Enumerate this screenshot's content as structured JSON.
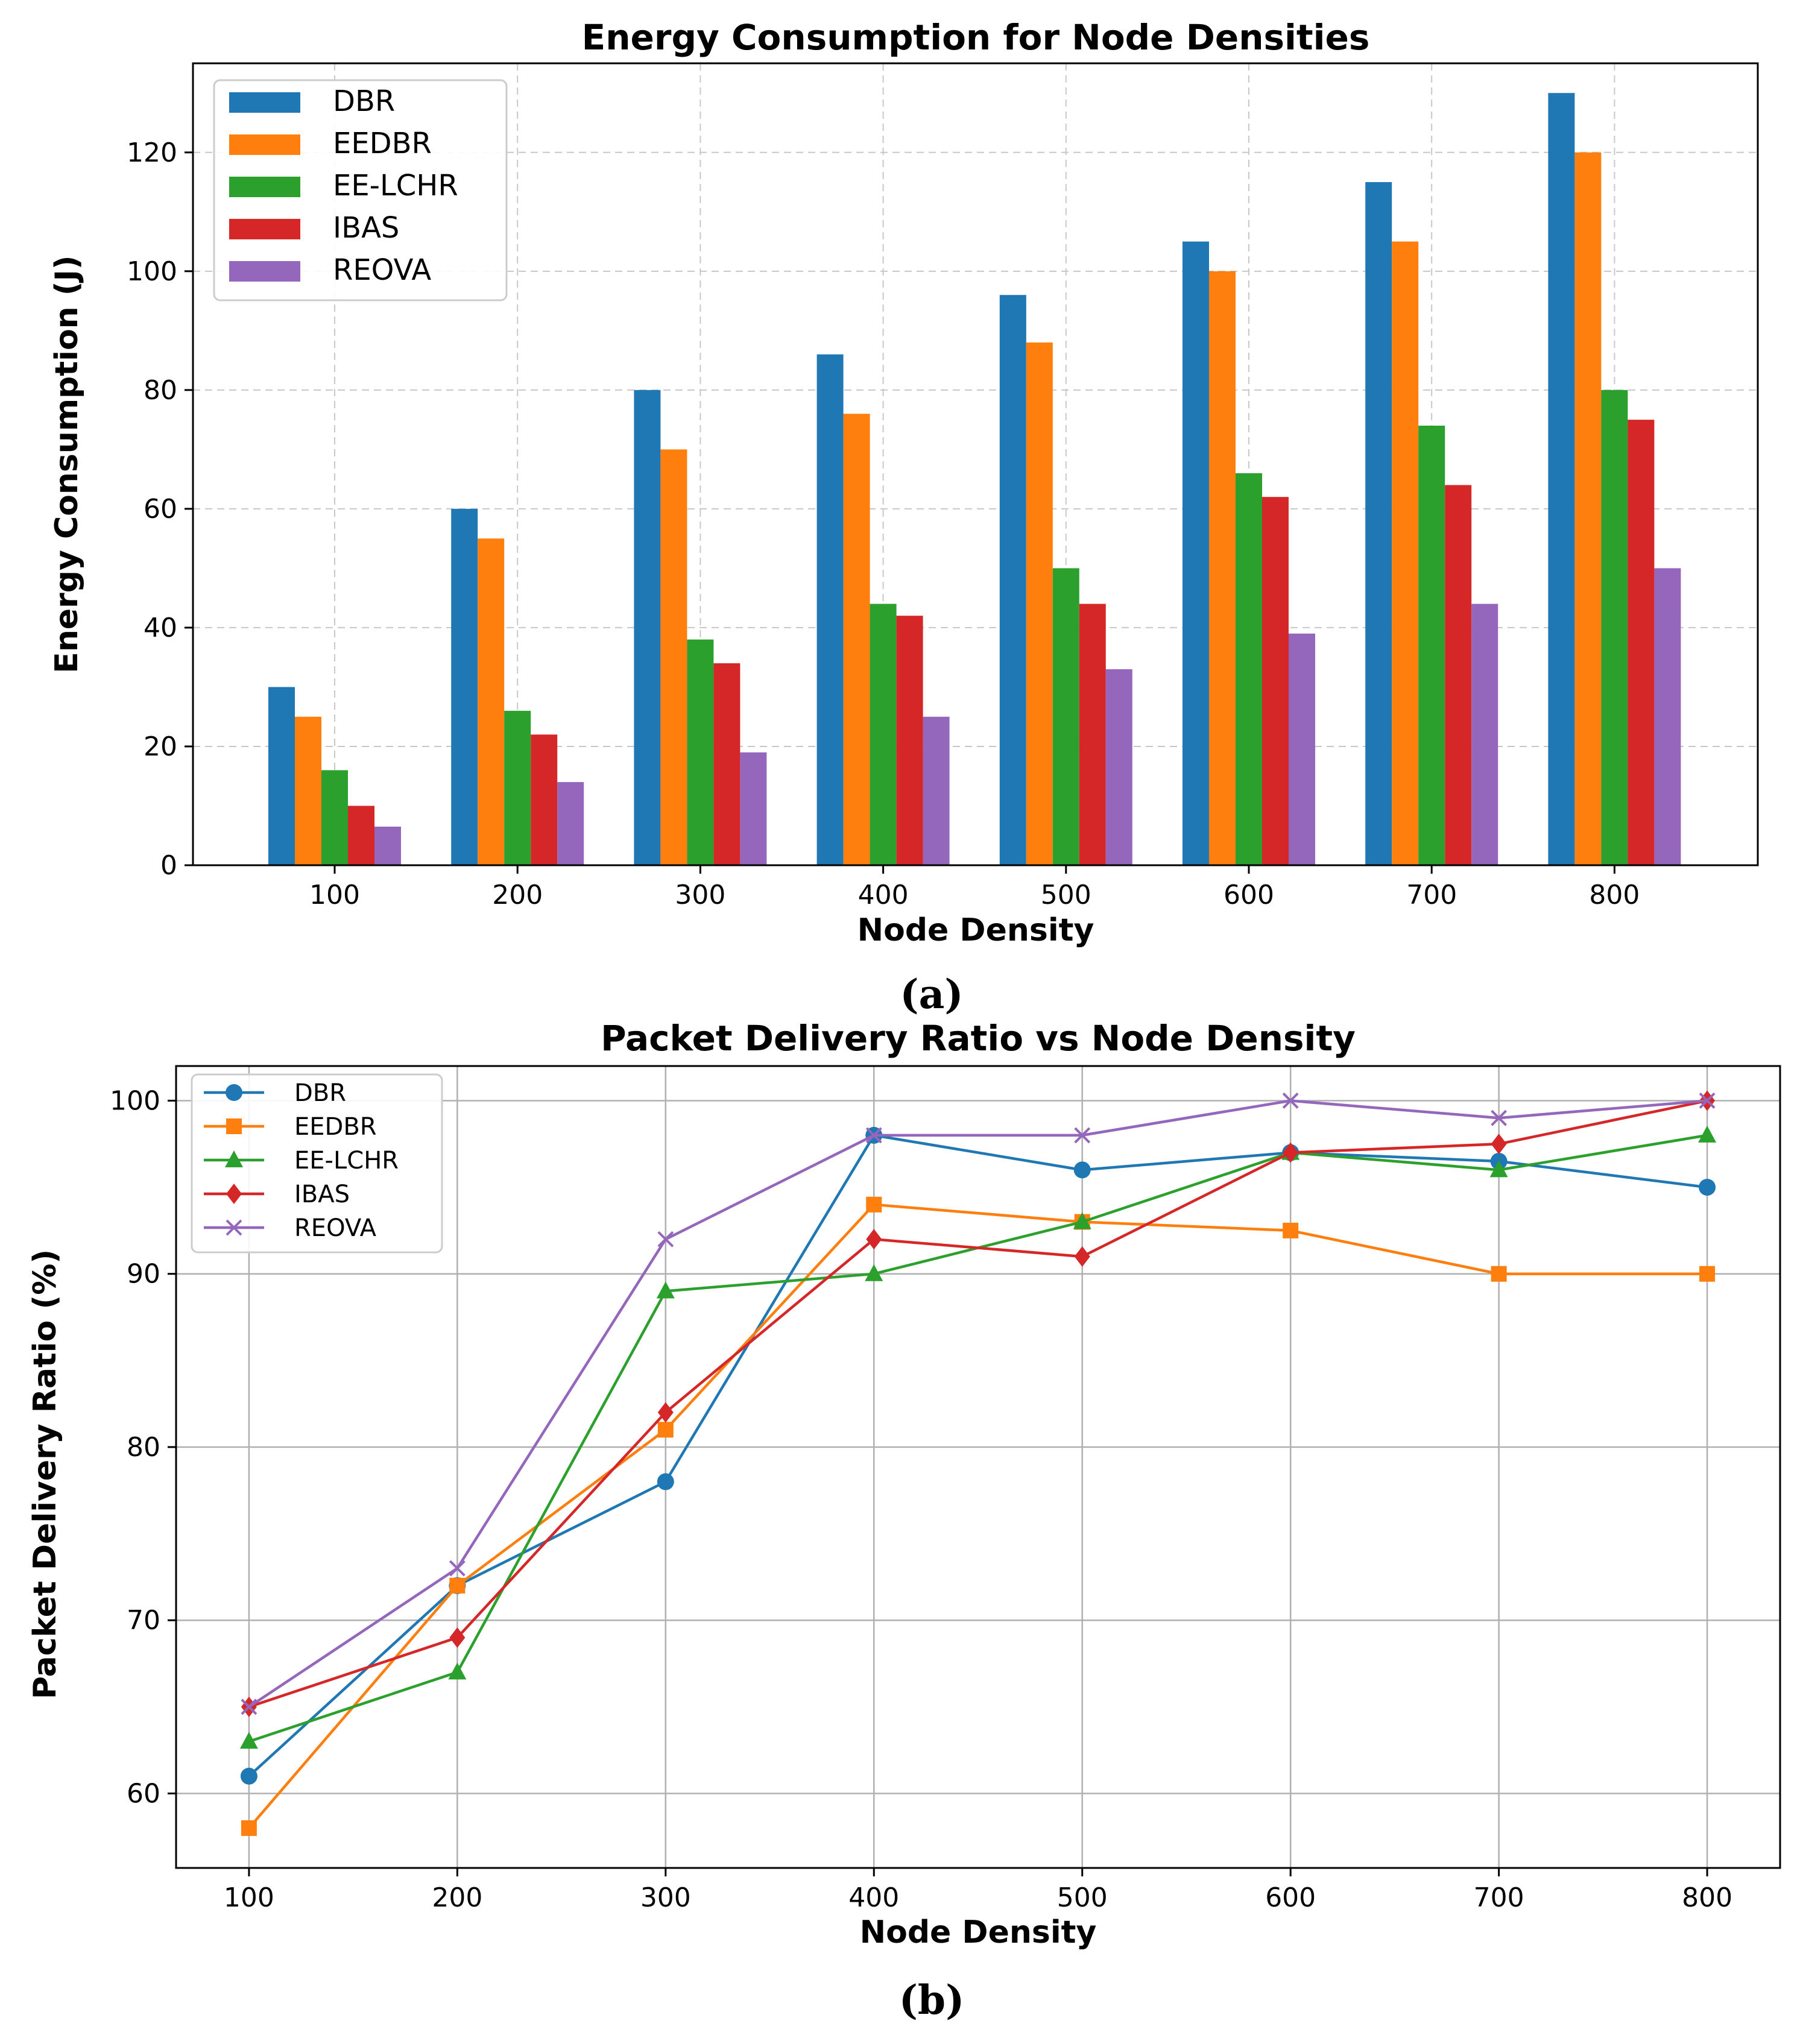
{
  "chart_data": [
    {
      "type": "bar",
      "panel_label": "(a)",
      "title": "Energy Consumption for Node Densities",
      "xlabel": "Node Density",
      "ylabel": "Energy Consumption (J)",
      "categories": [
        "100",
        "200",
        "300",
        "400",
        "500",
        "600",
        "700",
        "800"
      ],
      "ylim": [
        0,
        135
      ],
      "yticks": [
        0,
        20,
        40,
        60,
        80,
        100,
        120
      ],
      "grid": true,
      "legend_position": "top-left",
      "series": [
        {
          "name": "DBR",
          "color": "#1f77b4",
          "values": [
            30,
            60,
            80,
            86,
            96,
            105,
            115,
            130
          ]
        },
        {
          "name": "EEDBR",
          "color": "#ff7f0e",
          "values": [
            25,
            55,
            70,
            76,
            88,
            100,
            105,
            120
          ]
        },
        {
          "name": "EE-LCHR",
          "color": "#2ca02c",
          "values": [
            16,
            26,
            38,
            44,
            50,
            66,
            74,
            80
          ]
        },
        {
          "name": "IBAS",
          "color": "#d62728",
          "values": [
            10,
            22,
            34,
            42,
            44,
            62,
            64,
            75
          ]
        },
        {
          "name": "REOVA",
          "color": "#9467bd",
          "values": [
            6.5,
            14,
            19,
            25,
            33,
            39,
            44,
            50
          ]
        }
      ]
    },
    {
      "type": "line",
      "panel_label": "(b)",
      "title": "Packet Delivery Ratio vs Node Density",
      "xlabel": "Node Density",
      "ylabel": "Packet Delivery Ratio (%)",
      "x": [
        100,
        200,
        300,
        400,
        500,
        600,
        700,
        800
      ],
      "xlim": [
        65,
        835
      ],
      "ylim": [
        55.7,
        102
      ],
      "xticks": [
        100,
        200,
        300,
        400,
        500,
        600,
        700,
        800
      ],
      "yticks": [
        60,
        70,
        80,
        90,
        100
      ],
      "grid": true,
      "legend_position": "top-left",
      "series": [
        {
          "name": "DBR",
          "color": "#1f77b4",
          "marker": "circle",
          "values": [
            61,
            72,
            78,
            98,
            96,
            97,
            96.5,
            95
          ]
        },
        {
          "name": "EEDBR",
          "color": "#ff7f0e",
          "marker": "square",
          "values": [
            58,
            72,
            81,
            94,
            93,
            92.5,
            90,
            90
          ]
        },
        {
          "name": "EE-LCHR",
          "color": "#2ca02c",
          "marker": "triangle",
          "values": [
            63,
            67,
            89,
            90,
            93,
            97,
            96,
            98
          ]
        },
        {
          "name": "IBAS",
          "color": "#d62728",
          "marker": "diamond",
          "values": [
            65,
            69,
            82,
            92,
            91,
            97,
            97.5,
            100
          ]
        },
        {
          "name": "REOVA",
          "color": "#9467bd",
          "marker": "x",
          "values": [
            65,
            73,
            92,
            98,
            98,
            100,
            99,
            100
          ]
        }
      ]
    }
  ]
}
